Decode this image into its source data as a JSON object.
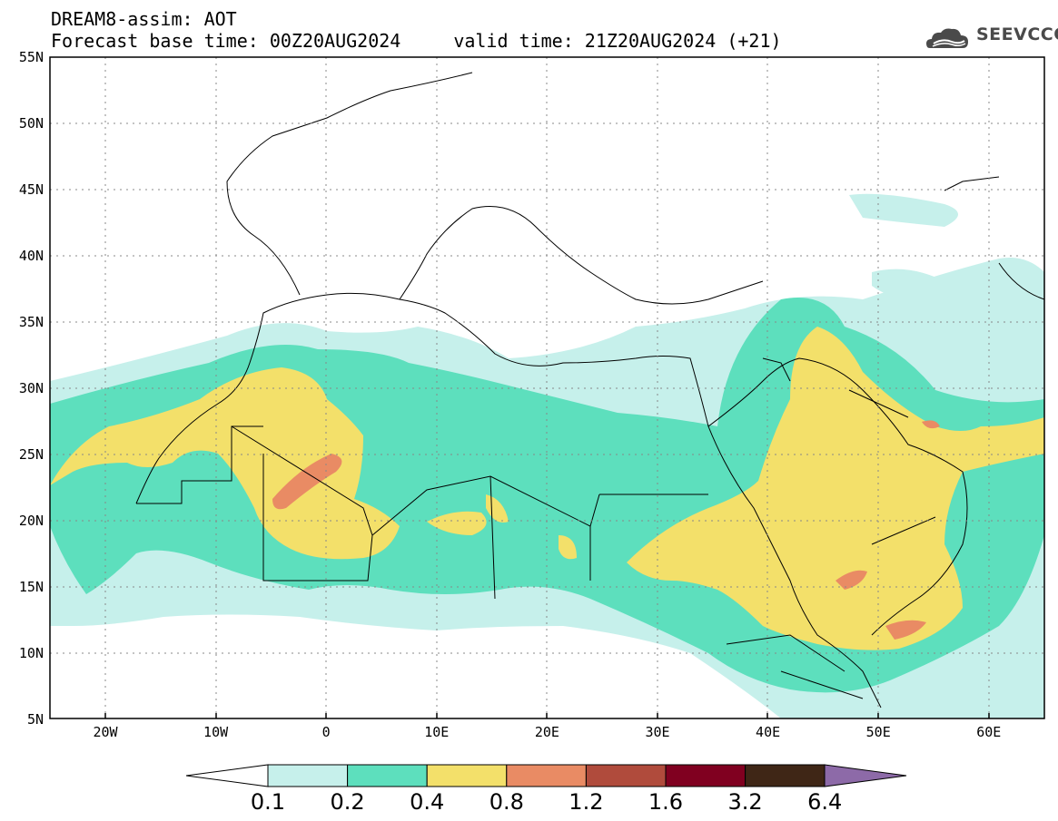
{
  "header": {
    "line1": "DREAM8-assim: AOT",
    "base_time": "Forecast base time: 00Z20AUG2024",
    "valid_time": "valid time: 21Z20AUG2024 (+21)"
  },
  "logo": {
    "text": "SEEVCCC",
    "icon": "cloud-icon"
  },
  "map": {
    "lat_labels": [
      "55N",
      "50N",
      "45N",
      "40N",
      "35N",
      "30N",
      "25N",
      "20N",
      "15N",
      "10N",
      "5N"
    ],
    "lon_labels": [
      "20W",
      "10W",
      "0",
      "10E",
      "20E",
      "30E",
      "40E",
      "50E",
      "60E"
    ],
    "lon_range": [
      -25,
      65
    ],
    "lat_range": [
      5,
      55
    ],
    "grid": true
  },
  "colorbar": {
    "labels": [
      "0.1",
      "0.2",
      "0.4",
      "0.8",
      "1.2",
      "1.6",
      "3.2",
      "6.4"
    ],
    "colors": [
      "#c6f0eb",
      "#5ddfbd",
      "#f3e06a",
      "#e98b64",
      "#b04b3c",
      "#800020",
      "#3f2616"
    ],
    "under_color": "#ffffff",
    "over_color": "#8d6aa8"
  }
}
